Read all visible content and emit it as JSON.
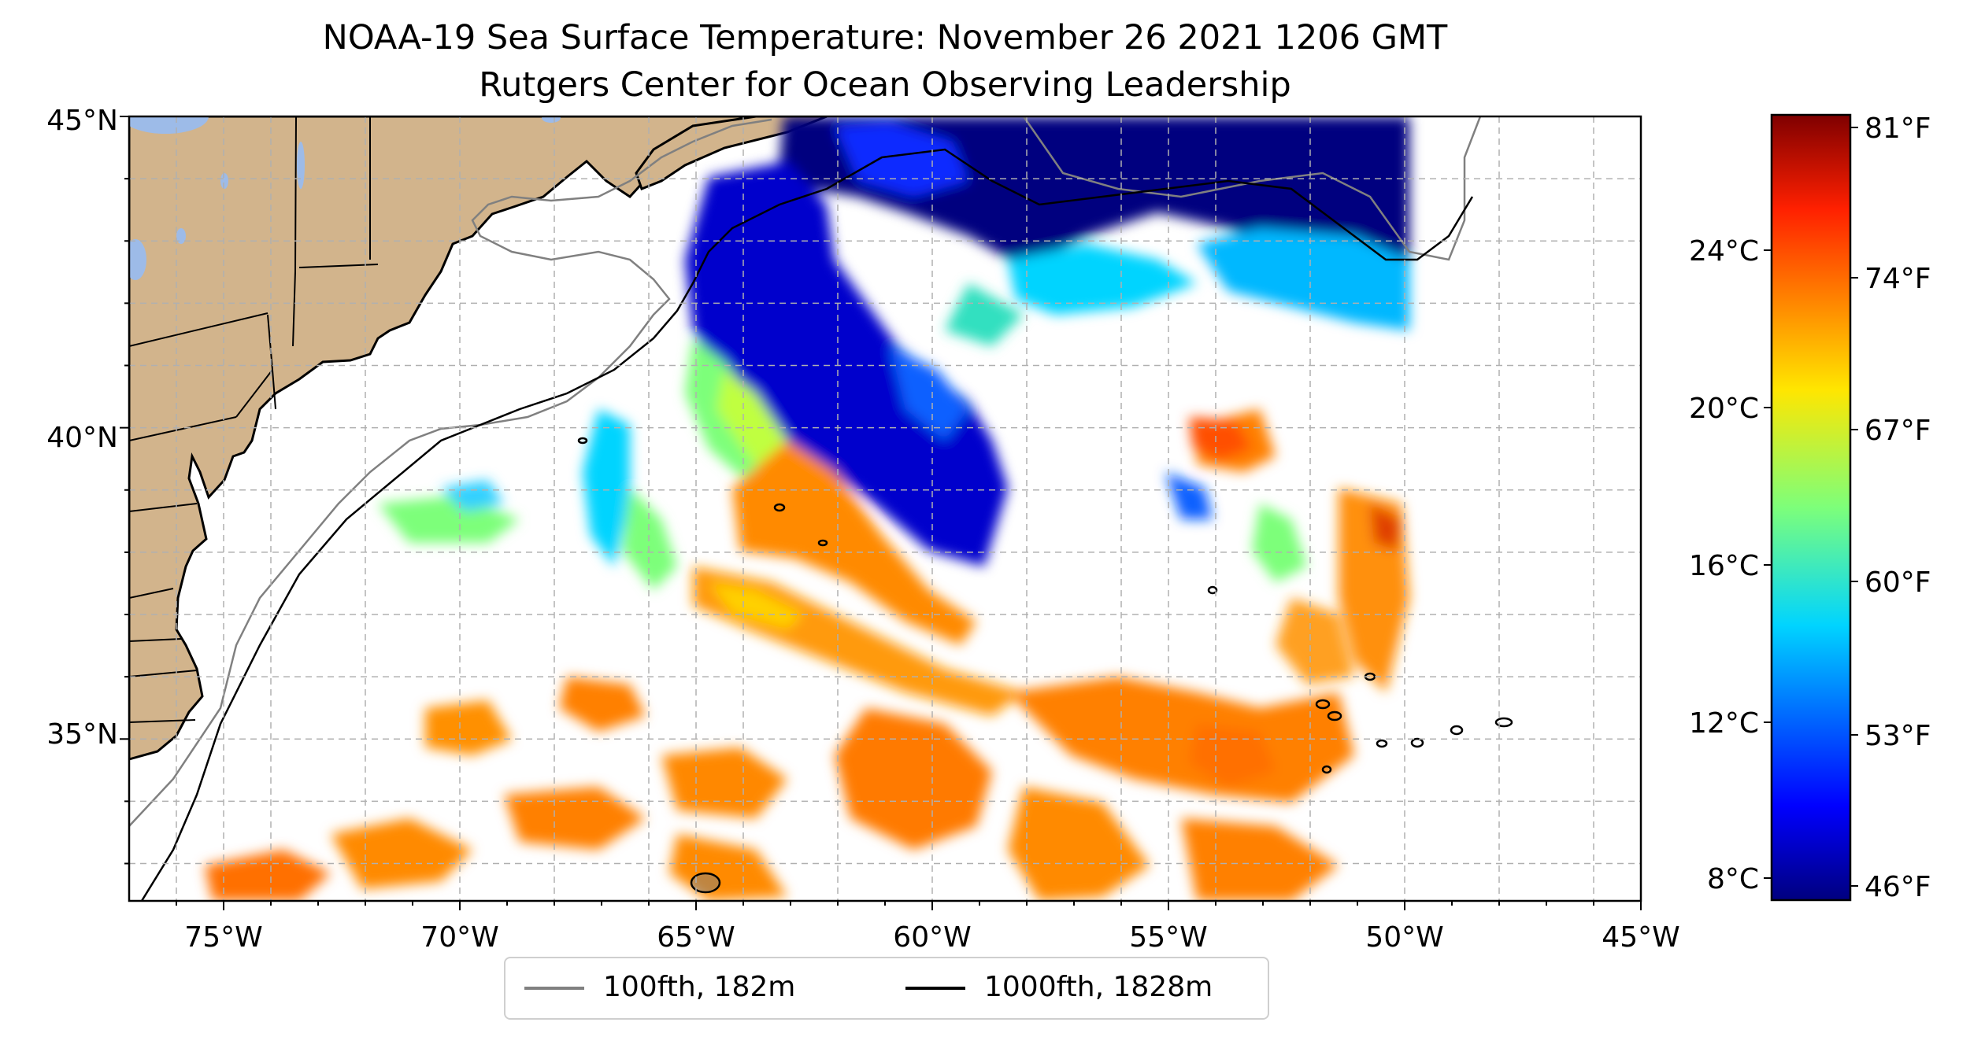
{
  "title": {
    "line1": "NOAA-19 Sea Surface Temperature: November 26 2021 1206 GMT",
    "line2": "Rutgers Center for Ocean Observing Leadership"
  },
  "map": {
    "extent": {
      "lon": [
        -77,
        -45
      ],
      "lat": [
        32.4,
        45
      ]
    },
    "land_color": "#d2b48c",
    "lake_color": "#9dbbe8",
    "grid": true,
    "lon_ticks": [
      "75°W",
      "70°W",
      "65°W",
      "60°W",
      "55°W",
      "50°W",
      "45°W"
    ],
    "lat_ticks": [
      "45°N",
      "40°N",
      "35°N"
    ]
  },
  "colorbar": {
    "colormap": "jet",
    "celsius_ticks": [
      "24°C",
      "20°C",
      "16°C",
      "12°C",
      "8°C"
    ],
    "fahrenheit_ticks": [
      "81°F",
      "74°F",
      "67°F",
      "60°F",
      "53°F",
      "46°F"
    ]
  },
  "legend": {
    "items": [
      {
        "label": "100fth, 182m",
        "color": "#808080"
      },
      {
        "label": "1000fth, 1828m",
        "color": "#000000"
      }
    ]
  }
}
